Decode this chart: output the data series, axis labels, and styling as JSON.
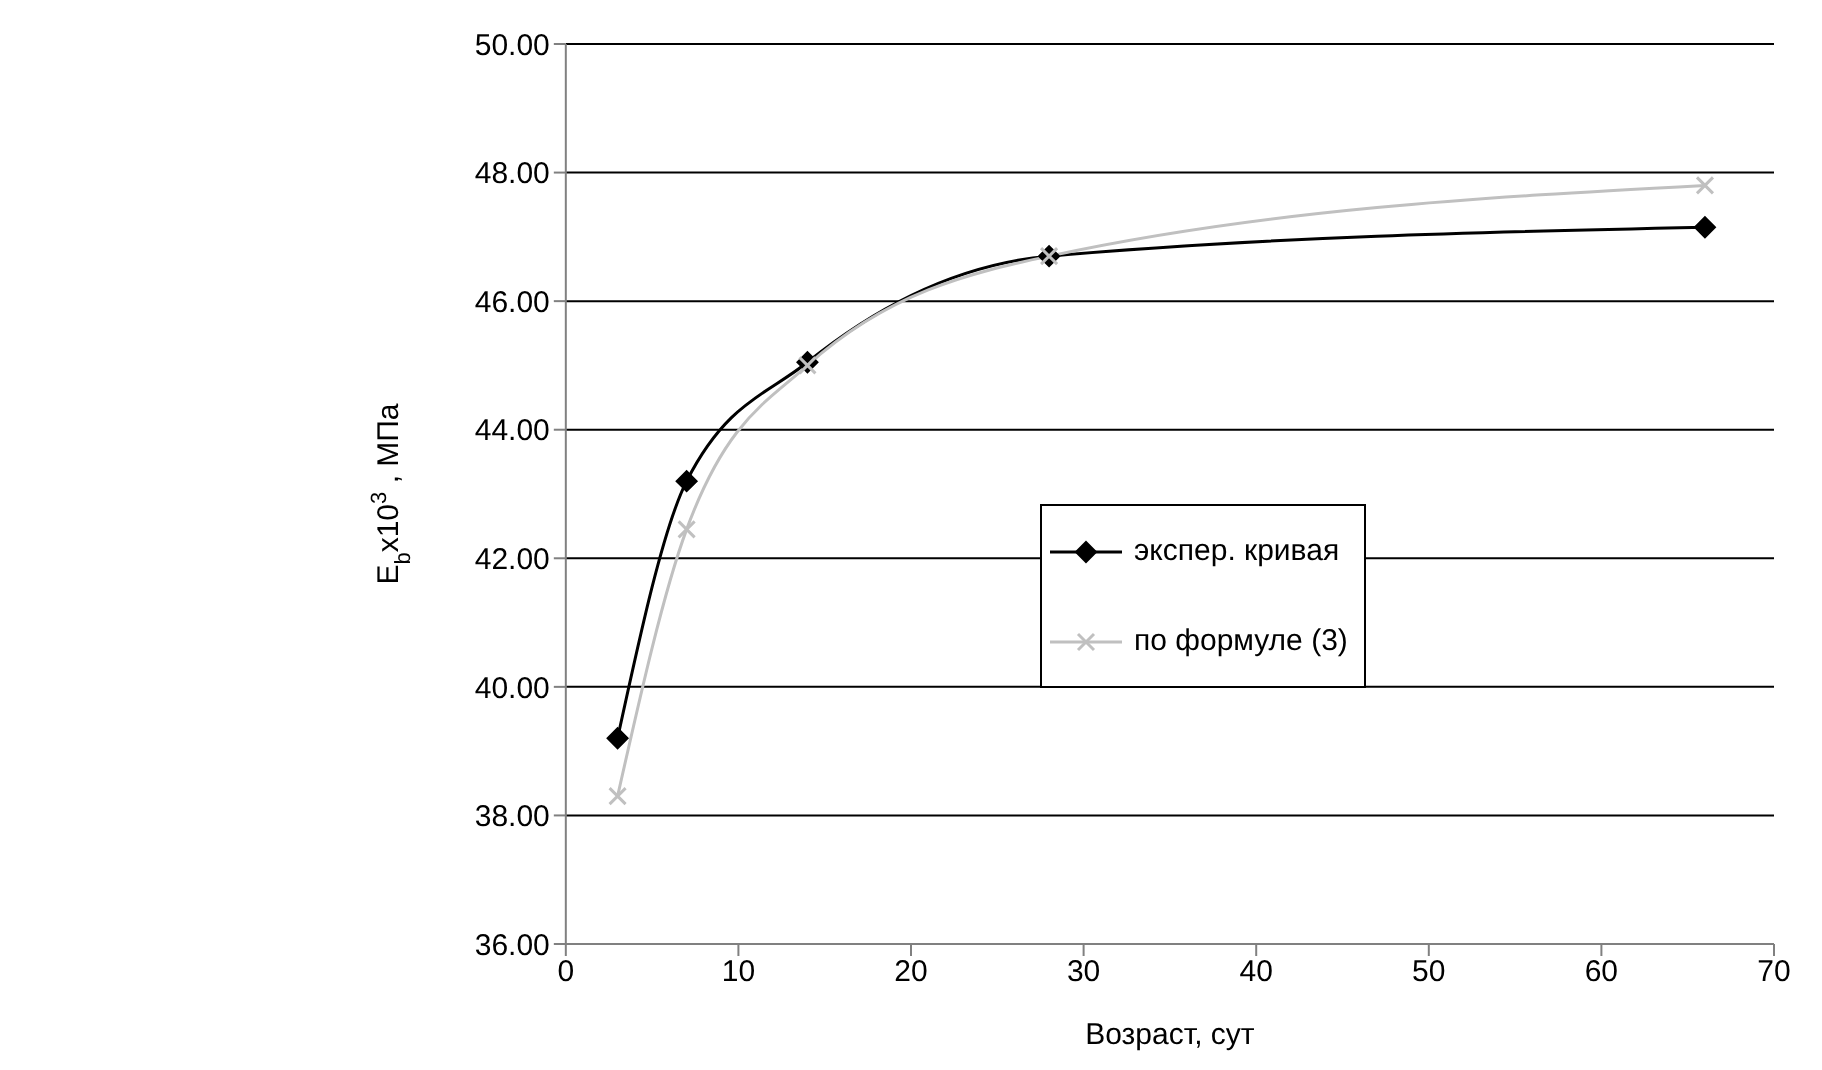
{
  "chart_data": {
    "type": "line",
    "xlabel": "Возраст, сут",
    "ylabel": "E$_{b}$x10$^{3}$ , МПа",
    "x": [
      3,
      7,
      14,
      28,
      66
    ],
    "series": [
      {
        "name": "экспер. кривая",
        "color": "#000000",
        "marker": "diamond",
        "values": [
          39.2,
          43.2,
          45.05,
          46.7,
          47.15
        ]
      },
      {
        "name": "по формуле (3)",
        "color": "#c0c0c0",
        "marker": "cross",
        "values": [
          38.3,
          42.45,
          45.0,
          46.7,
          47.8
        ]
      }
    ],
    "xlim": [
      0,
      70
    ],
    "xticks": [
      0,
      10,
      20,
      30,
      40,
      50,
      60,
      70
    ],
    "ylim": [
      36,
      50
    ],
    "yticks": [
      {
        "value": 36,
        "label": "36.00"
      },
      {
        "value": 38,
        "label": "38.00"
      },
      {
        "value": 40,
        "label": "40.00"
      },
      {
        "value": 42,
        "label": "42.00"
      },
      {
        "value": 44,
        "label": "44.00"
      },
      {
        "value": 46,
        "label": "46.00"
      },
      {
        "value": 48,
        "label": "48.00"
      },
      {
        "value": 50,
        "label": "50.00"
      }
    ],
    "grid": "y",
    "legend": "right"
  }
}
